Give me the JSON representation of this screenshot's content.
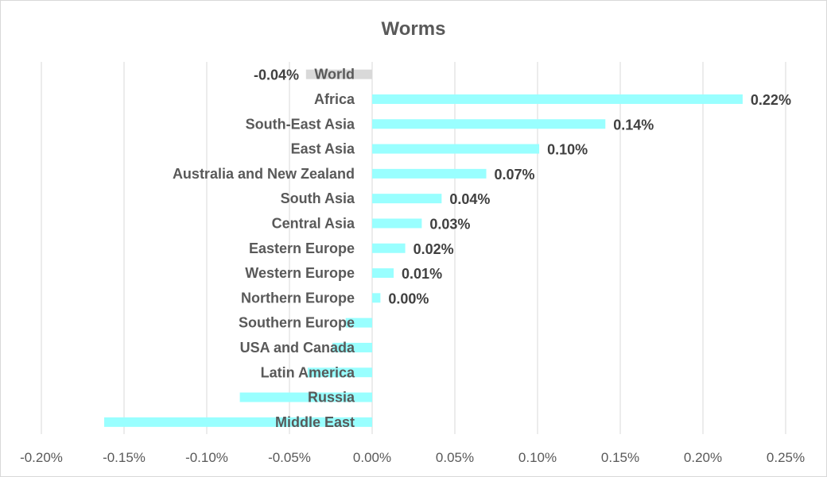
{
  "chart_data": {
    "type": "bar",
    "orientation": "horizontal",
    "title": "Worms",
    "xlabel": "",
    "ylabel": "",
    "xlim": [
      -0.2,
      0.25
    ],
    "x_ticks": [
      -0.2,
      -0.15,
      -0.1,
      -0.05,
      0.0,
      0.05,
      0.1,
      0.15,
      0.2,
      0.25
    ],
    "x_tick_labels": [
      "-0.20%",
      "-0.15%",
      "-0.10%",
      "-0.05%",
      "0.00%",
      "0.05%",
      "0.10%",
      "0.15%",
      "0.20%",
      "0.25%"
    ],
    "grid": "vertical",
    "categories": [
      "World",
      "Africa",
      "South-East Asia",
      "East Asia",
      "Australia and New Zealand",
      "South Asia",
      "Central Asia",
      "Eastern Europe",
      "Western Europe",
      "Northern Europe",
      "Southern Europe",
      "USA and Canada",
      "Latin America",
      "Russia",
      "Middle East"
    ],
    "values": [
      -0.04,
      0.224,
      0.141,
      0.101,
      0.069,
      0.042,
      0.03,
      0.02,
      0.013,
      0.005,
      -0.016,
      -0.024,
      -0.039,
      -0.08,
      -0.162
    ],
    "data_labels": [
      "-0.04%",
      "0.22%",
      "0.14%",
      "0.10%",
      "0.07%",
      "0.04%",
      "0.03%",
      "0.02%",
      "0.01%",
      "0.00%",
      "",
      "",
      "",
      "",
      ""
    ],
    "colors": {
      "world": "#d9d9d9",
      "region": "#99ffff",
      "grid": "#d9d9d9",
      "text": "#595959",
      "label": "#404040"
    }
  }
}
